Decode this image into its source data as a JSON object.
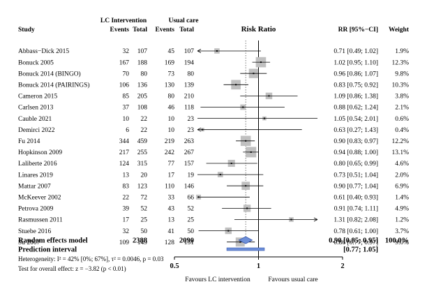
{
  "chart_data": {
    "type": "forest",
    "header": {
      "group1": "LC Intervention",
      "group2": "Usual care",
      "study": "Study",
      "events1": "Events",
      "total1": "Total",
      "events2": "Events",
      "total2": "Total",
      "effect": "Risk Ratio",
      "rr": "RR [95%−CI]",
      "weight": "Weight"
    },
    "studies": [
      {
        "study": "Abbass−Dick 2015",
        "e1": "32",
        "n1": "107",
        "e2": "45",
        "n2": "107",
        "rr": 0.71,
        "lo": 0.49,
        "hi": 1.02,
        "rr_text": "0.71 [0.49; 1.02]",
        "weight": 1.9,
        "weight_text": "1.9%",
        "arrow_left": true
      },
      {
        "study": "Bonuck 2005",
        "e1": "167",
        "n1": "188",
        "e2": "169",
        "n2": "194",
        "rr": 1.02,
        "lo": 0.95,
        "hi": 1.1,
        "rr_text": "1.02 [0.95; 1.10]",
        "weight": 12.3,
        "weight_text": "12.3%"
      },
      {
        "study": "Bonuck 2014 (BINGO)",
        "e1": "70",
        "n1": "80",
        "e2": "73",
        "n2": "80",
        "rr": 0.96,
        "lo": 0.86,
        "hi": 1.07,
        "rr_text": "0.96 [0.86; 1.07]",
        "weight": 9.8,
        "weight_text": "9.8%"
      },
      {
        "study": "Bonuck 2014 (PAIRINGS)",
        "e1": "106",
        "n1": "136",
        "e2": "130",
        "n2": "139",
        "rr": 0.83,
        "lo": 0.75,
        "hi": 0.92,
        "rr_text": "0.83 [0.75; 0.92]",
        "weight": 10.3,
        "weight_text": "10.3%"
      },
      {
        "study": "Cameron 2015",
        "e1": "85",
        "n1": "205",
        "e2": "80",
        "n2": "210",
        "rr": 1.09,
        "lo": 0.86,
        "hi": 1.38,
        "rr_text": "1.09 [0.86; 1.38]",
        "weight": 3.8,
        "weight_text": "3.8%"
      },
      {
        "study": "Carlsen 2013",
        "e1": "37",
        "n1": "108",
        "e2": "46",
        "n2": "118",
        "rr": 0.88,
        "lo": 0.62,
        "hi": 1.24,
        "rr_text": "0.88 [0.62; 1.24]",
        "weight": 2.1,
        "weight_text": "2.1%"
      },
      {
        "study": "Cauble 2021",
        "e1": "10",
        "n1": "22",
        "e2": "10",
        "n2": "23",
        "rr": 1.05,
        "lo": 0.54,
        "hi": 2.01,
        "rr_text": "1.05 [0.54; 2.01]",
        "weight": 0.6,
        "weight_text": "0.6%"
      },
      {
        "study": "Demirci 2022",
        "e1": "6",
        "n1": "22",
        "e2": "10",
        "n2": "23",
        "rr": 0.63,
        "lo": 0.27,
        "hi": 1.43,
        "rr_text": "0.63 [0.27; 1.43]",
        "weight": 0.4,
        "weight_text": "0.4%",
        "arrow_left": true
      },
      {
        "study": "Fu 2014",
        "e1": "344",
        "n1": "459",
        "e2": "219",
        "n2": "263",
        "rr": 0.9,
        "lo": 0.83,
        "hi": 0.97,
        "rr_text": "0.90 [0.83; 0.97]",
        "weight": 12.2,
        "weight_text": "12.2%"
      },
      {
        "study": "Hopkinson 2009",
        "e1": "217",
        "n1": "255",
        "e2": "242",
        "n2": "267",
        "rr": 0.94,
        "lo": 0.88,
        "hi": 1.0,
        "rr_text": "0.94 [0.88; 1.00]",
        "weight": 13.1,
        "weight_text": "13.1%"
      },
      {
        "study": "Laliberte 2016",
        "e1": "124",
        "n1": "315",
        "e2": "77",
        "n2": "157",
        "rr": 0.8,
        "lo": 0.65,
        "hi": 0.99,
        "rr_text": "0.80 [0.65; 0.99]",
        "weight": 4.6,
        "weight_text": "4.6%"
      },
      {
        "study": "Linares 2019",
        "e1": "13",
        "n1": "20",
        "e2": "17",
        "n2": "19",
        "rr": 0.73,
        "lo": 0.51,
        "hi": 1.04,
        "rr_text": "0.73 [0.51; 1.04]",
        "weight": 2.0,
        "weight_text": "2.0%"
      },
      {
        "study": "Mattar 2007",
        "e1": "83",
        "n1": "123",
        "e2": "110",
        "n2": "146",
        "rr": 0.9,
        "lo": 0.77,
        "hi": 1.04,
        "rr_text": "0.90 [0.77; 1.04]",
        "weight": 6.9,
        "weight_text": "6.9%"
      },
      {
        "study": "McKeever 2002",
        "e1": "22",
        "n1": "72",
        "e2": "33",
        "n2": "66",
        "rr": 0.61,
        "lo": 0.4,
        "hi": 0.93,
        "rr_text": "0.61 [0.40; 0.93]",
        "weight": 1.4,
        "weight_text": "1.4%"
      },
      {
        "study": "Petrova 2009",
        "e1": "39",
        "n1": "52",
        "e2": "43",
        "n2": "52",
        "rr": 0.91,
        "lo": 0.74,
        "hi": 1.11,
        "rr_text": "0.91 [0.74; 1.11]",
        "weight": 4.9,
        "weight_text": "4.9%"
      },
      {
        "study": "Rasmussen 2011",
        "e1": "17",
        "n1": "25",
        "e2": "13",
        "n2": "25",
        "rr": 1.31,
        "lo": 0.82,
        "hi": 2.08,
        "rr_text": "1.31 [0.82; 2.08]",
        "weight": 1.2,
        "weight_text": "1.2%",
        "arrow_right": true
      },
      {
        "study": "Stuebe 2016",
        "e1": "32",
        "n1": "50",
        "e2": "41",
        "n2": "50",
        "rr": 0.78,
        "lo": 0.61,
        "hi": 1.0,
        "rr_text": "0.78 [0.61; 1.00]",
        "weight": 3.7,
        "weight_text": "3.7%"
      },
      {
        "study": "Su 2007",
        "e1": "109",
        "n1": "149",
        "e2": "128",
        "n2": "151",
        "rr": 0.86,
        "lo": 0.77,
        "hi": 0.97,
        "rr_text": "0.86 [0.77; 0.97]",
        "weight": 9.0,
        "weight_text": "9.0%"
      }
    ],
    "pooled": {
      "label": "Random effects model",
      "n1": "2388",
      "n2": "2090",
      "rr": 0.9,
      "lo": 0.85,
      "hi": 0.95,
      "rr_text": "0.90 [0.85; 0.95]",
      "weight_text": "100.0%"
    },
    "prediction": {
      "label": "Prediction interval",
      "lo": 0.77,
      "hi": 1.05,
      "rr_text": "[0.77; 1.05]"
    },
    "heterogeneity": "Heterogeneity: I² = 42% [0%; 67%], τ² = 0.0046, p = 0.03",
    "overall_test": "Test for overall effect: z = −3.82 (p < 0.01)",
    "x_axis": {
      "scale": "log",
      "range": [
        0.5,
        2
      ],
      "ticks": [
        0.5,
        1,
        2
      ],
      "tick_labels": [
        "0.5",
        "1",
        "2"
      ],
      "reference_line": 1,
      "label_left": "Favours LC intervention",
      "label_right": "Favours usual care"
    },
    "colors": {
      "box": "#c0c0c0",
      "diamond_fill": "#6d8fd8",
      "diamond_stroke": "#3b5bb0",
      "prediction_fill": "#6d8fd8"
    }
  }
}
